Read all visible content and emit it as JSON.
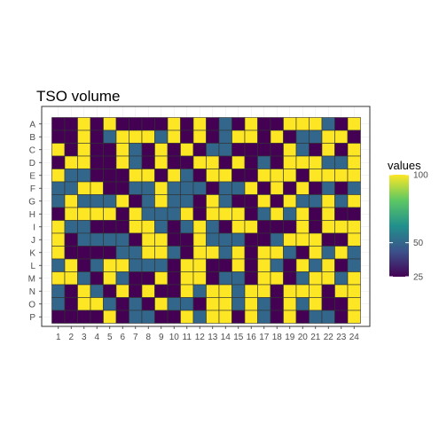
{
  "chart_data": {
    "type": "heatmap",
    "title": "TSO volume",
    "xlabel": "",
    "ylabel": "",
    "x_categories": [
      "1",
      "2",
      "3",
      "4",
      "5",
      "6",
      "7",
      "8",
      "9",
      "10",
      "11",
      "12",
      "13",
      "14",
      "15",
      "16",
      "17",
      "18",
      "19",
      "20",
      "21",
      "22",
      "23",
      "24"
    ],
    "y_categories": [
      "A",
      "B",
      "C",
      "D",
      "E",
      "F",
      "G",
      "H",
      "I",
      "J",
      "K",
      "L",
      "M",
      "N",
      "O",
      "P"
    ],
    "values": [
      [
        25,
        25,
        100,
        25,
        100,
        25,
        25,
        25,
        25,
        100,
        25,
        100,
        25,
        50,
        25,
        100,
        25,
        25,
        100,
        100,
        100,
        50,
        25,
        100
      ],
      [
        25,
        25,
        100,
        25,
        50,
        100,
        100,
        100,
        50,
        100,
        25,
        100,
        25,
        50,
        100,
        100,
        25,
        100,
        25,
        50,
        50,
        100,
        100,
        25
      ],
      [
        100,
        25,
        100,
        25,
        25,
        100,
        50,
        25,
        100,
        25,
        100,
        25,
        50,
        50,
        25,
        25,
        25,
        25,
        100,
        50,
        25,
        100,
        25,
        100
      ],
      [
        25,
        100,
        100,
        25,
        25,
        100,
        50,
        25,
        100,
        25,
        25,
        100,
        100,
        25,
        100,
        25,
        50,
        25,
        100,
        100,
        100,
        50,
        50,
        100
      ],
      [
        100,
        50,
        50,
        25,
        25,
        25,
        100,
        100,
        25,
        100,
        50,
        25,
        100,
        100,
        25,
        25,
        100,
        100,
        100,
        25,
        100,
        100,
        100,
        100
      ],
      [
        50,
        50,
        100,
        100,
        25,
        25,
        50,
        50,
        100,
        50,
        50,
        50,
        25,
        50,
        50,
        100,
        25,
        100,
        25,
        100,
        25,
        50,
        25,
        50
      ],
      [
        50,
        100,
        50,
        50,
        50,
        100,
        25,
        50,
        100,
        50,
        50,
        25,
        100,
        50,
        25,
        25,
        100,
        25,
        100,
        50,
        50,
        100,
        50,
        100
      ],
      [
        25,
        100,
        100,
        100,
        100,
        25,
        100,
        50,
        50,
        50,
        100,
        25,
        100,
        100,
        100,
        25,
        50,
        100,
        50,
        100,
        25,
        100,
        25,
        25
      ],
      [
        100,
        50,
        50,
        25,
        25,
        25,
        100,
        100,
        50,
        25,
        50,
        100,
        50,
        25,
        100,
        100,
        25,
        25,
        25,
        100,
        25,
        100,
        100,
        100
      ],
      [
        100,
        25,
        50,
        50,
        50,
        50,
        25,
        100,
        100,
        25,
        25,
        100,
        50,
        50,
        50,
        25,
        25,
        50,
        100,
        100,
        100,
        25,
        25,
        100
      ],
      [
        100,
        25,
        25,
        25,
        25,
        50,
        50,
        100,
        100,
        50,
        25,
        100,
        100,
        50,
        100,
        25,
        100,
        100,
        50,
        25,
        100,
        50,
        100,
        50
      ],
      [
        50,
        100,
        25,
        50,
        100,
        100,
        50,
        50,
        50,
        25,
        100,
        100,
        25,
        25,
        100,
        25,
        100,
        50,
        25,
        100,
        50,
        100,
        25,
        50
      ],
      [
        100,
        100,
        50,
        25,
        100,
        50,
        25,
        25,
        100,
        25,
        100,
        100,
        25,
        50,
        50,
        25,
        100,
        100,
        25,
        50,
        100,
        100,
        50,
        100
      ],
      [
        50,
        25,
        100,
        50,
        25,
        100,
        25,
        100,
        25,
        25,
        100,
        50,
        100,
        100,
        50,
        100,
        100,
        25,
        100,
        100,
        100,
        25,
        100,
        100
      ],
      [
        50,
        25,
        100,
        100,
        50,
        25,
        50,
        25,
        100,
        50,
        50,
        25,
        100,
        100,
        50,
        100,
        50,
        25,
        100,
        50,
        100,
        25,
        25,
        100
      ],
      [
        25,
        25,
        25,
        25,
        100,
        25,
        50,
        50,
        25,
        25,
        100,
        50,
        100,
        100,
        25,
        100,
        50,
        25,
        100,
        25,
        50,
        50,
        25,
        100
      ]
    ],
    "color_scale": {
      "name": "viridis",
      "domain": [
        25,
        100
      ],
      "colors": [
        "#440154",
        "#3b528b",
        "#21908c",
        "#5dc863",
        "#fde725"
      ],
      "legend_title": "values",
      "legend_ticks": [
        25,
        50,
        100
      ],
      "legend_tick_labels": [
        "25",
        "50",
        "100"
      ]
    },
    "grid": true,
    "legend_position": "right"
  }
}
